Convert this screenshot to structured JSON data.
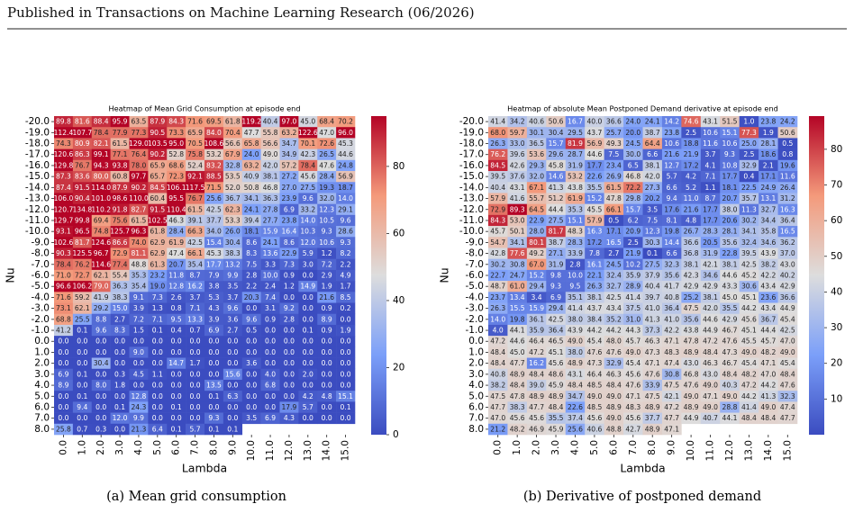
{
  "header": "Published in Transactions on Machine Learning Research (06/2026)",
  "chart_data": [
    {
      "type": "heatmap",
      "title": "Heatmap of Mean Grid Consumption at episode end",
      "xlabel": "Lambda",
      "ylabel": "Nu",
      "caption": "(a) Mean grid consumption",
      "cmap": "coolwarm",
      "clim": [
        0,
        95
      ],
      "cticks": [
        0,
        20,
        40,
        60,
        80
      ],
      "x": [
        "0.0",
        "1.0",
        "2.0",
        "3.0",
        "4.0",
        "5.0",
        "6.0",
        "7.0",
        "8.0",
        "9.0",
        "10.0",
        "11.0",
        "12.0",
        "13.0",
        "14.0",
        "15.0"
      ],
      "y": [
        "-20.0",
        "-19.0",
        "-18.0",
        "-17.0",
        "-16.0",
        "-15.0",
        "-14.0",
        "-13.0",
        "-12.0",
        "-11.0",
        "-10.0",
        "-9.0",
        "-8.0",
        "-7.0",
        "-6.0",
        "-5.0",
        "-4.0",
        "-3.0",
        "-2.0",
        "-1.0",
        "0.0",
        "1.0",
        "2.0",
        "3.0",
        "4.0",
        "5.0",
        "6.0",
        "7.0",
        "8.0"
      ],
      "values": [
        [
          89.8,
          81.6,
          88.4,
          95.9,
          63.5,
          87.9,
          84.3,
          71.6,
          69.5,
          61.8,
          119.2,
          40.4,
          97.0,
          45.0,
          68.4,
          70.2
        ],
        [
          112.4,
          107.7,
          78.4,
          77.9,
          77.3,
          90.5,
          73.3,
          65.9,
          84.0,
          70.4,
          47.7,
          55.8,
          63.2,
          122.6,
          47.0,
          96.0
        ],
        [
          74.3,
          80.9,
          82.1,
          61.5,
          129.0,
          103.5,
          95.0,
          70.5,
          108.6,
          56.6,
          65.8,
          56.6,
          34.7,
          70.1,
          72.6,
          45.3
        ],
        [
          120.6,
          86.3,
          99.1,
          77.1,
          76.4,
          90.2,
          52.8,
          75.8,
          53.2,
          67.9,
          24.0,
          49.0,
          34.9,
          42.3,
          26.5,
          44.6
        ],
        [
          129.8,
          76.7,
          94.3,
          93.8,
          78.0,
          65.9,
          68.6,
          52.4,
          83.2,
          32.8,
          63.2,
          42.0,
          57.2,
          78.4,
          47.6,
          24.8
        ],
        [
          87.3,
          83.6,
          80.0,
          60.8,
          97.7,
          65.7,
          72.3,
          92.1,
          88.5,
          53.5,
          40.9,
          38.1,
          27.2,
          45.6,
          28.4,
          56.9
        ],
        [
          87.4,
          91.5,
          114.0,
          87.9,
          90.2,
          84.5,
          106.1,
          117.5,
          71.5,
          52.0,
          50.8,
          46.8,
          27.0,
          27.5,
          19.3,
          18.7
        ],
        [
          106.0,
          90.4,
          101.0,
          98.6,
          110.0,
          60.4,
          95.5,
          76.7,
          25.6,
          36.7,
          34.1,
          36.3,
          23.9,
          9.6,
          32.0,
          14.0
        ],
        [
          120.7,
          134.8,
          110.2,
          91.8,
          82.7,
          91.5,
          110.4,
          61.5,
          42.5,
          62.3,
          24.1,
          27.8,
          6.9,
          33.2,
          12.3,
          29.1
        ],
        [
          129.7,
          99.8,
          69.4,
          75.6,
          61.5,
          102.5,
          46.3,
          39.1,
          37.7,
          53.3,
          39.4,
          27.7,
          23.8,
          14.0,
          10.5,
          9.6
        ],
        [
          93.1,
          96.5,
          74.8,
          125.7,
          96.3,
          61.8,
          28.4,
          66.3,
          34.0,
          26.0,
          18.1,
          15.9,
          16.4,
          10.3,
          9.3,
          28.6
        ],
        [
          102.6,
          81.7,
          124.6,
          86.6,
          74.0,
          62.9,
          61.9,
          42.5,
          15.4,
          30.4,
          8.6,
          24.1,
          8.6,
          12.0,
          10.6,
          9.3
        ],
        [
          90.3,
          125.5,
          96.7,
          72.9,
          81.1,
          62.9,
          47.4,
          66.1,
          45.3,
          38.3,
          8.3,
          13.6,
          22.9,
          5.9,
          1.2,
          8.2
        ],
        [
          78.4,
          76.2,
          114.6,
          77.4,
          48.8,
          61.3,
          20.7,
          35.4,
          17.7,
          13.2,
          7.5,
          3.3,
          7.3,
          3.0,
          7.2,
          2.2
        ],
        [
          71.0,
          72.7,
          62.1,
          55.4,
          35.3,
          23.2,
          11.8,
          8.7,
          7.9,
          9.9,
          2.8,
          10.0,
          0.9,
          0.0,
          2.9,
          4.9
        ],
        [
          96.6,
          106.2,
          79.0,
          36.3,
          35.4,
          19.0,
          12.8,
          16.2,
          3.8,
          3.5,
          2.2,
          2.4,
          1.2,
          14.9,
          1.9,
          1.7
        ],
        [
          71.6,
          59.2,
          41.9,
          38.3,
          9.1,
          7.3,
          2.6,
          3.7,
          5.3,
          3.7,
          20.3,
          7.4,
          0.0,
          0.0,
          21.6,
          8.5
        ],
        [
          73.1,
          62.1,
          29.2,
          15.0,
          3.9,
          1.3,
          0.8,
          7.1,
          4.3,
          9.6,
          0.0,
          3.1,
          9.2,
          0.0,
          0.9,
          0.2
        ],
        [
          68.8,
          25.5,
          8.8,
          2.7,
          7.2,
          7.1,
          9.5,
          13.3,
          3.9,
          3.6,
          9.6,
          0.9,
          2.8,
          0.0,
          8.9,
          0.0
        ],
        [
          41.2,
          0.1,
          9.6,
          8.3,
          1.5,
          0.1,
          0.4,
          0.7,
          6.9,
          2.7,
          0.5,
          0.0,
          0.0,
          0.1,
          0.9,
          1.9
        ],
        [
          0.0,
          0.0,
          0.0,
          0.0,
          0.0,
          0.0,
          0.0,
          0.0,
          0.0,
          0.0,
          0.0,
          0.0,
          0.0,
          0.0,
          0.0,
          0.0
        ],
        [
          0.0,
          0.0,
          0.0,
          0.0,
          9.0,
          0.0,
          0.0,
          0.0,
          0.0,
          0.0,
          0.0,
          0.0,
          0.0,
          0.0,
          0.0,
          0.0
        ],
        [
          0.0,
          0.0,
          30.4,
          0.0,
          0.0,
          0.0,
          14.7,
          1.7,
          0.0,
          0.0,
          3.6,
          0.0,
          0.0,
          0.0,
          0.0,
          0.0
        ],
        [
          6.9,
          0.1,
          0.0,
          0.3,
          4.5,
          1.1,
          0.0,
          0.0,
          0.0,
          15.6,
          0.0,
          4.0,
          0.0,
          2.0,
          0.0,
          0.0
        ],
        [
          8.9,
          0.0,
          8.0,
          1.8,
          0.0,
          0.0,
          0.0,
          0.0,
          13.5,
          0.0,
          0.0,
          6.8,
          0.0,
          0.0,
          0.0,
          0.0
        ],
        [
          0.0,
          0.1,
          0.0,
          0.0,
          12.8,
          0.0,
          0.0,
          0.0,
          0.1,
          6.3,
          0.0,
          0.0,
          0.0,
          4.2,
          4.8,
          15.1
        ],
        [
          0.0,
          9.4,
          0.0,
          0.1,
          24.3,
          0.0,
          0.1,
          0.0,
          0.0,
          0.0,
          0.0,
          0.0,
          17.9,
          5.7,
          0.0,
          0.1
        ],
        [
          0.0,
          0.0,
          0.0,
          12.0,
          9.9,
          0.0,
          0.0,
          0.0,
          9.3,
          0.0,
          3.5,
          6.9,
          4.3,
          0.0,
          0.0,
          0.0
        ],
        [
          25.8,
          0.7,
          0.3,
          0.0,
          21.3,
          6.4,
          0.1,
          5.7,
          0.1,
          0.1,
          null,
          null,
          null,
          null,
          null,
          null
        ]
      ]
    },
    {
      "type": "heatmap",
      "title": "Heatmap of absolute Mean Postponed Demand derivative at episode end",
      "xlabel": "Lambda",
      "ylabel": "Nu",
      "caption": "(b) Derivative of postponed demand",
      "cmap": "coolwarm",
      "clim": [
        0,
        89.3
      ],
      "cticks": [
        10,
        20,
        30,
        40,
        50,
        60,
        70,
        80
      ],
      "x": [
        "0.0",
        "1.0",
        "2.0",
        "3.0",
        "4.0",
        "5.0",
        "6.0",
        "7.0",
        "8.0",
        "9.0",
        "10.0",
        "11.0",
        "12.0",
        "13.0",
        "14.0",
        "15.0"
      ],
      "y": [
        "-20.0",
        "-19.0",
        "-18.0",
        "-17.0",
        "-16.0",
        "-15.0",
        "-14.0",
        "-13.0",
        "-12.0",
        "-11.0",
        "-10.0",
        "-9.0",
        "-8.0",
        "-7.0",
        "-6.0",
        "-5.0",
        "-4.0",
        "-3.0",
        "-2.0",
        "-1.0",
        "0.0",
        "1.0",
        "2.0",
        "3.0",
        "4.0",
        "5.0",
        "6.0",
        "7.0",
        "8.0"
      ],
      "values": [
        [
          41.4,
          34.2,
          40.6,
          50.6,
          16.7,
          40.0,
          36.6,
          24.0,
          24.1,
          14.2,
          74.6,
          43.1,
          51.5,
          1.0,
          23.8,
          24.2
        ],
        [
          68.0,
          59.7,
          30.1,
          30.4,
          29.5,
          43.7,
          25.7,
          20.0,
          38.7,
          23.8,
          2.5,
          10.6,
          15.1,
          77.3,
          1.9,
          50.6
        ],
        [
          26.3,
          33.0,
          36.5,
          15.7,
          81.9,
          56.9,
          49.3,
          24.5,
          64.4,
          10.6,
          18.8,
          11.6,
          10.6,
          25.0,
          28.1,
          0.5
        ],
        [
          76.2,
          39.6,
          53.6,
          29.6,
          28.7,
          44.6,
          7.5,
          30.0,
          6.6,
          21.6,
          21.9,
          3.7,
          9.3,
          2.5,
          18.6,
          0.8
        ],
        [
          84.5,
          42.6,
          29.3,
          45.8,
          31.9,
          17.7,
          23.4,
          6.5,
          38.1,
          12.7,
          17.2,
          4.1,
          10.8,
          32.9,
          2.1,
          19.6
        ],
        [
          39.5,
          37.6,
          32.0,
          14.6,
          53.2,
          22.6,
          26.9,
          46.8,
          42.0,
          5.7,
          4.2,
          7.1,
          17.7,
          0.4,
          17.1,
          11.6
        ],
        [
          40.4,
          43.1,
          67.1,
          41.3,
          43.8,
          35.5,
          61.5,
          72.2,
          27.3,
          6.6,
          5.2,
          1.1,
          18.1,
          22.5,
          24.9,
          26.4
        ],
        [
          57.9,
          41.6,
          55.7,
          51.2,
          61.9,
          15.2,
          47.8,
          29.8,
          20.2,
          9.4,
          11.0,
          8.7,
          20.7,
          35.7,
          13.1,
          31.2
        ],
        [
          72.9,
          89.3,
          64.5,
          44.4,
          35.3,
          45.5,
          66.1,
          15.7,
          3.5,
          17.6,
          21.6,
          17.7,
          38.0,
          11.3,
          32.7,
          16.3
        ],
        [
          84.3,
          53.0,
          22.9,
          27.5,
          15.1,
          57.9,
          0.5,
          6.2,
          7.5,
          8.1,
          4.8,
          17.7,
          20.6,
          30.2,
          34.4,
          36.4
        ],
        [
          45.7,
          50.1,
          28.0,
          81.7,
          48.3,
          16.3,
          17.1,
          20.9,
          12.3,
          19.8,
          26.7,
          28.3,
          28.1,
          34.1,
          35.8,
          16.5
        ],
        [
          54.7,
          34.1,
          80.1,
          38.7,
          28.3,
          17.2,
          16.5,
          2.5,
          30.3,
          14.4,
          36.6,
          20.5,
          35.6,
          32.4,
          34.6,
          36.2
        ],
        [
          42.8,
          77.6,
          49.2,
          27.1,
          33.9,
          7.8,
          2.7,
          21.9,
          0.1,
          6.6,
          36.8,
          31.9,
          22.8,
          39.5,
          43.9,
          37.0
        ],
        [
          30.2,
          30.8,
          67.0,
          31.9,
          2.8,
          16.1,
          24.5,
          10.2,
          27.5,
          32.3,
          38.1,
          42.1,
          38.1,
          42.5,
          38.2,
          43.0
        ],
        [
          22.7,
          24.7,
          15.2,
          9.8,
          10.0,
          22.1,
          32.4,
          35.9,
          37.9,
          35.6,
          42.3,
          34.6,
          44.6,
          45.2,
          42.2,
          40.2
        ],
        [
          48.7,
          61.0,
          29.4,
          9.3,
          9.5,
          26.3,
          32.7,
          28.9,
          40.4,
          41.7,
          42.9,
          42.9,
          43.3,
          30.6,
          43.4,
          42.9
        ],
        [
          23.7,
          13.4,
          3.4,
          6.9,
          35.1,
          38.1,
          42.5,
          41.4,
          39.7,
          40.8,
          25.2,
          38.1,
          45.0,
          45.1,
          23.6,
          36.6
        ],
        [
          26.3,
          15.5,
          15.9,
          29.4,
          41.4,
          43.7,
          43.4,
          37.5,
          41.0,
          36.4,
          47.5,
          42.0,
          35.5,
          44.2,
          43.4,
          44.9
        ],
        [
          14.0,
          19.8,
          36.1,
          42.5,
          38.0,
          38.4,
          35.2,
          31.0,
          41.3,
          41.0,
          35.6,
          44.6,
          42.9,
          45.6,
          36.7,
          45.4
        ],
        [
          4.0,
          44.1,
          35.9,
          36.4,
          43.9,
          44.2,
          44.2,
          44.3,
          37.3,
          42.2,
          43.8,
          44.9,
          46.7,
          45.1,
          44.4,
          42.5
        ],
        [
          47.2,
          44.6,
          46.4,
          46.5,
          49.0,
          45.4,
          48.0,
          45.7,
          46.3,
          47.1,
          47.8,
          47.2,
          47.6,
          45.5,
          45.7,
          47.0
        ],
        [
          48.4,
          45.0,
          47.2,
          45.1,
          38.0,
          47.6,
          47.6,
          49.0,
          47.3,
          48.3,
          48.9,
          48.4,
          47.3,
          49.0,
          48.2,
          49.0
        ],
        [
          48.4,
          47.7,
          16.2,
          45.6,
          48.9,
          47.3,
          32.9,
          45.4,
          47.1,
          47.4,
          43.0,
          46.3,
          46.7,
          45.4,
          47.1,
          45.4
        ],
        [
          40.8,
          48.9,
          48.4,
          48.6,
          43.1,
          46.4,
          46.3,
          45.6,
          47.6,
          30.8,
          46.8,
          43.0,
          48.4,
          48.2,
          47.0,
          48.4
        ],
        [
          38.2,
          48.4,
          39.0,
          45.9,
          48.4,
          48.5,
          48.4,
          47.6,
          33.9,
          47.5,
          47.6,
          49.0,
          40.3,
          47.2,
          44.2,
          47.6
        ],
        [
          47.5,
          47.8,
          48.9,
          48.9,
          34.7,
          49.0,
          49.0,
          47.1,
          47.5,
          42.1,
          49.0,
          47.1,
          49.0,
          44.2,
          41.3,
          32.3
        ],
        [
          47.7,
          38.3,
          47.7,
          48.4,
          22.6,
          48.5,
          48.9,
          48.3,
          48.9,
          47.2,
          48.9,
          49.0,
          28.8,
          41.4,
          49.0,
          47.4
        ],
        [
          47.0,
          45.6,
          45.6,
          35.5,
          37.4,
          45.6,
          49.0,
          45.6,
          37.7,
          47.7,
          44.9,
          40.7,
          44.1,
          48.4,
          48.4,
          47.7
        ],
        [
          21.2,
          48.2,
          46.9,
          45.9,
          25.6,
          40.6,
          48.8,
          42.7,
          48.9,
          47.1,
          null,
          null,
          null,
          null,
          null,
          null
        ]
      ]
    }
  ]
}
